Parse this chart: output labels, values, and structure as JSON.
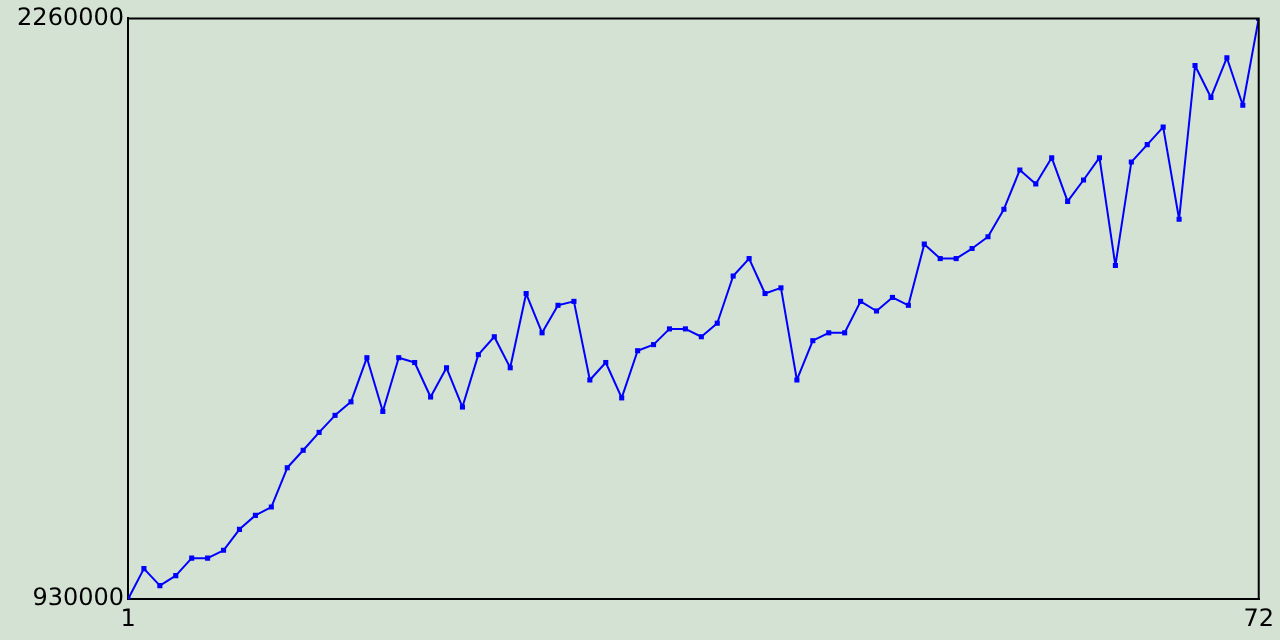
{
  "chart_data": {
    "type": "line",
    "x": [
      1,
      2,
      3,
      4,
      5,
      6,
      7,
      8,
      9,
      10,
      11,
      12,
      13,
      14,
      15,
      16,
      17,
      18,
      19,
      20,
      21,
      22,
      23,
      24,
      25,
      26,
      27,
      28,
      29,
      30,
      31,
      32,
      33,
      34,
      35,
      36,
      37,
      38,
      39,
      40,
      41,
      42,
      43,
      44,
      45,
      46,
      47,
      48,
      49,
      50,
      51,
      52,
      53,
      54,
      55,
      56,
      57,
      58,
      59,
      60,
      61,
      62,
      63,
      64,
      65,
      66,
      67,
      68,
      69,
      70,
      71,
      72
    ],
    "series": [
      {
        "color": "#0000ff",
        "values": [
          930000,
          1000000,
          961000,
          984000,
          1024000,
          1024000,
          1042000,
          1090000,
          1122000,
          1141000,
          1231000,
          1271000,
          1312000,
          1351000,
          1382000,
          1483000,
          1360000,
          1483000,
          1472000,
          1393000,
          1460000,
          1370000,
          1490000,
          1531000,
          1460000,
          1630000,
          1540000,
          1603000,
          1612000,
          1432000,
          1472000,
          1391000,
          1499000,
          1513000,
          1549000,
          1549000,
          1531000,
          1562000,
          1670000,
          1710000,
          1630000,
          1643000,
          1432000,
          1522000,
          1540000,
          1540000,
          1612000,
          1590000,
          1621000,
          1603000,
          1743000,
          1710000,
          1710000,
          1733000,
          1760000,
          1823000,
          1913000,
          1881000,
          1941000,
          1841000,
          1890000,
          1941000,
          1694000,
          1931000,
          1971000,
          2011000,
          1800000,
          2152000,
          2079000,
          2170000,
          2061000,
          2260000
        ]
      }
    ],
    "xlim": [
      1,
      72
    ],
    "xticks": [
      1,
      72
    ],
    "ylim": [
      930000,
      2260000
    ],
    "yticks": [
      930000,
      2260000
    ],
    "grid": false,
    "legend": false,
    "marker": "square",
    "line_style": "solid"
  }
}
